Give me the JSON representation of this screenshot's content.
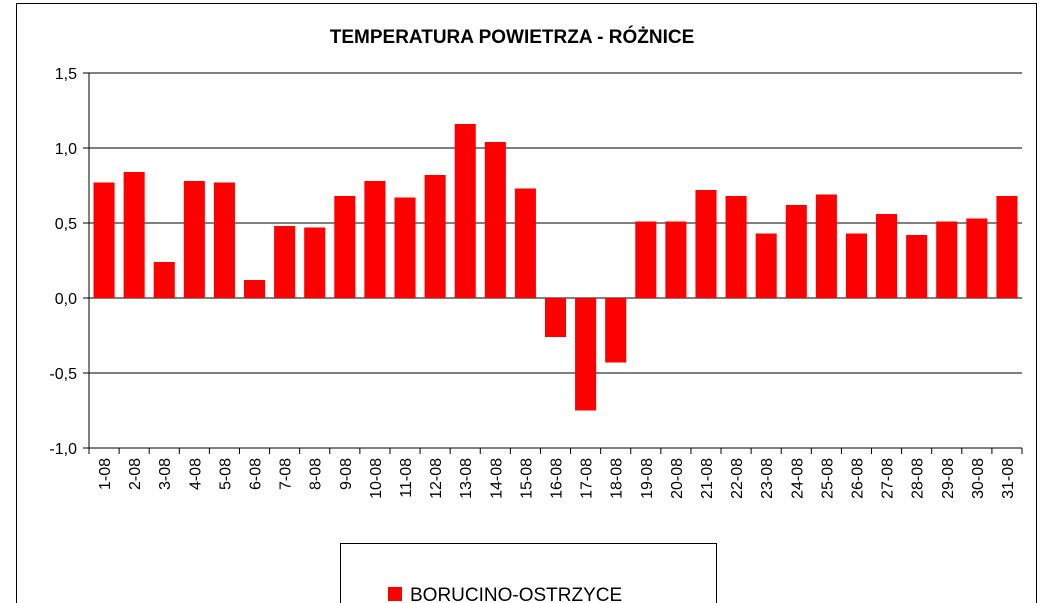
{
  "chart_data": {
    "type": "bar",
    "title": "TEMPERATURA  POWIETRZA - RÓŻNICE",
    "categories": [
      "1-08",
      "2-08",
      "3-08",
      "4-08",
      "5-08",
      "6-08",
      "7-08",
      "8-08",
      "9-08",
      "10-08",
      "11-08",
      "12-08",
      "13-08",
      "14-08",
      "15-08",
      "16-08",
      "17-08",
      "18-08",
      "19-08",
      "20-08",
      "21-08",
      "22-08",
      "23-08",
      "24-08",
      "25-08",
      "26-08",
      "27-08",
      "28-08",
      "29-08",
      "30-08",
      "31-08"
    ],
    "series": [
      {
        "name": "BORUCINO-OSTRZYCE",
        "color": "#ff0000",
        "values": [
          0.77,
          0.84,
          0.24,
          0.78,
          0.77,
          0.12,
          0.48,
          0.47,
          0.68,
          0.78,
          0.67,
          0.82,
          1.16,
          1.04,
          0.73,
          -0.26,
          -0.75,
          -0.43,
          0.51,
          0.51,
          0.72,
          0.68,
          0.43,
          0.62,
          0.69,
          0.43,
          0.56,
          0.42,
          0.51,
          0.53,
          0.68
        ]
      }
    ],
    "ylim": [
      -1.0,
      1.5
    ],
    "yticks": [
      {
        "value": -1.0,
        "label": "-1,0"
      },
      {
        "value": -0.5,
        "label": "-0,5"
      },
      {
        "value": 0.0,
        "label": "0,0"
      },
      {
        "value": 0.5,
        "label": "0,5"
      },
      {
        "value": 1.0,
        "label": "1,0"
      },
      {
        "value": 1.5,
        "label": "1,5"
      }
    ],
    "grid": true,
    "legend": "bottom"
  }
}
